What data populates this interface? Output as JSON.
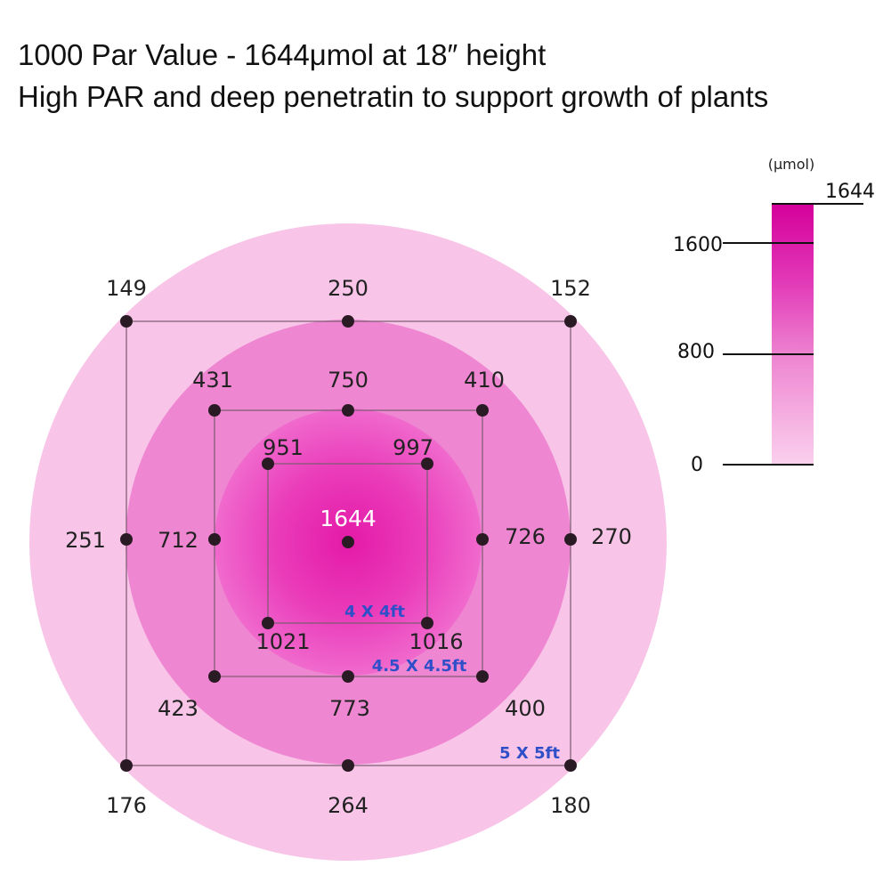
{
  "header": {
    "line1": "1000 Par Value - 1644μmol at 18″ height",
    "line2": "High PAR and deep penetratin to support growth of plants"
  },
  "colors": {
    "outer_ring": "#f8c4e8",
    "middle_ring": "#ef86d2",
    "inner_center": "#e81fae",
    "inner_edge": "#f065cc",
    "dot": "#2a1a24",
    "square_line": "#7a5a70",
    "area_label": "#2f4fc9"
  },
  "readings": {
    "center": "1644",
    "inner": {
      "top_left": "951",
      "top_right": "997",
      "bottom_left": "1021",
      "bottom_right": "1016"
    },
    "middle": {
      "top_left": "431",
      "top": "750",
      "top_right": "410",
      "left": "712",
      "right": "726",
      "bottom_left": "423",
      "bottom": "773",
      "bottom_right": "400"
    },
    "outer": {
      "top_left": "149",
      "top": "250",
      "top_right": "152",
      "left": "251",
      "right": "270",
      "bottom_left": "176",
      "bottom": "264",
      "bottom_right": "180"
    }
  },
  "areas": {
    "inner": "4 X 4ft",
    "middle": "4.5 X 4.5ft",
    "outer": "5 X 5ft"
  },
  "scale": {
    "unit": "(μmol)",
    "max": "1644",
    "ticks": [
      "1600",
      "800",
      "0"
    ]
  }
}
